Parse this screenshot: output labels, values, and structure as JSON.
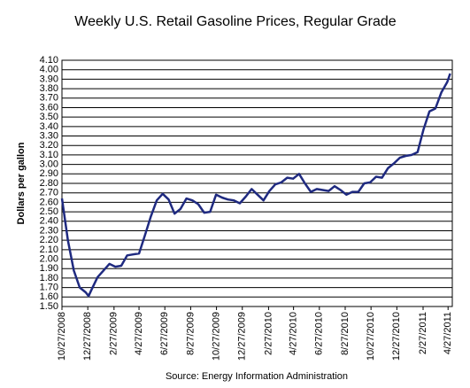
{
  "chart_data": {
    "type": "line",
    "title": "Weekly U.S. Retail Gasoline Prices, Regular Grade",
    "y_label": "Dollars per gallon",
    "source": "Source:  Energy Information Administration",
    "x": [
      "10/27/2008",
      "11/10/2008",
      "11/24/2008",
      "12/8/2008",
      "12/22/2008",
      "12/29/2008",
      "1/5/2009",
      "1/19/2009",
      "2/2/2009",
      "2/16/2009",
      "3/2/2009",
      "3/16/2009",
      "3/30/2009",
      "4/13/2009",
      "4/27/2009",
      "5/11/2009",
      "5/25/2009",
      "6/8/2009",
      "6/22/2009",
      "7/6/2009",
      "7/20/2009",
      "8/3/2009",
      "8/17/2009",
      "8/31/2009",
      "9/14/2009",
      "9/28/2009",
      "10/12/2009",
      "10/26/2009",
      "11/9/2009",
      "11/23/2009",
      "12/7/2009",
      "12/21/2009",
      "1/4/2010",
      "1/18/2010",
      "2/1/2010",
      "2/15/2010",
      "3/1/2010",
      "3/15/2010",
      "3/29/2010",
      "4/12/2010",
      "4/26/2010",
      "5/10/2010",
      "5/24/2010",
      "6/7/2010",
      "6/21/2010",
      "7/5/2010",
      "7/19/2010",
      "8/2/2010",
      "8/16/2010",
      "8/30/2010",
      "9/13/2010",
      "9/27/2010",
      "10/11/2010",
      "10/25/2010",
      "11/8/2010",
      "11/22/2010",
      "12/6/2010",
      "12/20/2010",
      "1/3/2011",
      "1/17/2011",
      "1/31/2011",
      "2/14/2011",
      "2/28/2011",
      "3/14/2011",
      "3/28/2011",
      "4/11/2011",
      "4/25/2011",
      "5/2/2011"
    ],
    "series": [
      {
        "name": "Regular Grade",
        "color": "#1f2a80",
        "values": [
          2.64,
          2.2,
          1.88,
          1.7,
          1.65,
          1.61,
          1.68,
          1.81,
          1.88,
          1.95,
          1.92,
          1.93,
          2.04,
          2.05,
          2.06,
          2.25,
          2.45,
          2.62,
          2.69,
          2.63,
          2.48,
          2.53,
          2.64,
          2.62,
          2.58,
          2.49,
          2.5,
          2.68,
          2.65,
          2.63,
          2.62,
          2.59,
          2.66,
          2.74,
          2.68,
          2.62,
          2.72,
          2.79,
          2.81,
          2.86,
          2.85,
          2.9,
          2.8,
          2.71,
          2.74,
          2.73,
          2.72,
          2.77,
          2.73,
          2.68,
          2.71,
          2.71,
          2.8,
          2.81,
          2.87,
          2.86,
          2.96,
          3.01,
          3.07,
          3.09,
          3.1,
          3.13,
          3.37,
          3.56,
          3.59,
          3.76,
          3.87,
          3.96
        ]
      }
    ],
    "xlim": [
      "10/27/2008",
      "5/7/2011"
    ],
    "xticks": [
      "10/27/2008",
      "12/27/2008",
      "2/27/2009",
      "4/27/2009",
      "6/27/2009",
      "8/27/2009",
      "10/27/2009",
      "12/27/2009",
      "2/27/2010",
      "4/27/2010",
      "6/27/2010",
      "8/27/2010",
      "10/27/2010",
      "12/27/2010",
      "2/27/2011",
      "4/27/2011"
    ],
    "ylim": [
      1.5,
      4.1
    ],
    "yticks": [
      {
        "value": 1.5,
        "label": "1.50"
      },
      {
        "value": 1.6,
        "label": "1.60"
      },
      {
        "value": 1.7,
        "label": "1.70"
      },
      {
        "value": 1.8,
        "label": "1.80"
      },
      {
        "value": 1.9,
        "label": "1.90"
      },
      {
        "value": 2.0,
        "label": "2.00"
      },
      {
        "value": 2.1,
        "label": "2.10"
      },
      {
        "value": 2.2,
        "label": "2.20"
      },
      {
        "value": 2.3,
        "label": "2.30"
      },
      {
        "value": 2.4,
        "label": "2.40"
      },
      {
        "value": 2.5,
        "label": "2.50"
      },
      {
        "value": 2.6,
        "label": "2.60"
      },
      {
        "value": 2.7,
        "label": "2.70"
      },
      {
        "value": 2.8,
        "label": "2.80"
      },
      {
        "value": 2.9,
        "label": "2.90"
      },
      {
        "value": 3.0,
        "label": "3.00"
      },
      {
        "value": 3.1,
        "label": "3.10"
      },
      {
        "value": 3.2,
        "label": "3.20"
      },
      {
        "value": 3.3,
        "label": "3.30"
      },
      {
        "value": 3.4,
        "label": "3.40"
      },
      {
        "value": 3.5,
        "label": "3.50"
      },
      {
        "value": 3.6,
        "label": "3.60"
      },
      {
        "value": 3.7,
        "label": "3.70"
      },
      {
        "value": 3.8,
        "label": "3.80"
      },
      {
        "value": 3.9,
        "label": "3.90"
      },
      {
        "value": 4.0,
        "label": "4.00"
      },
      {
        "value": 4.1,
        "label": "4.10"
      }
    ],
    "grid": true
  }
}
